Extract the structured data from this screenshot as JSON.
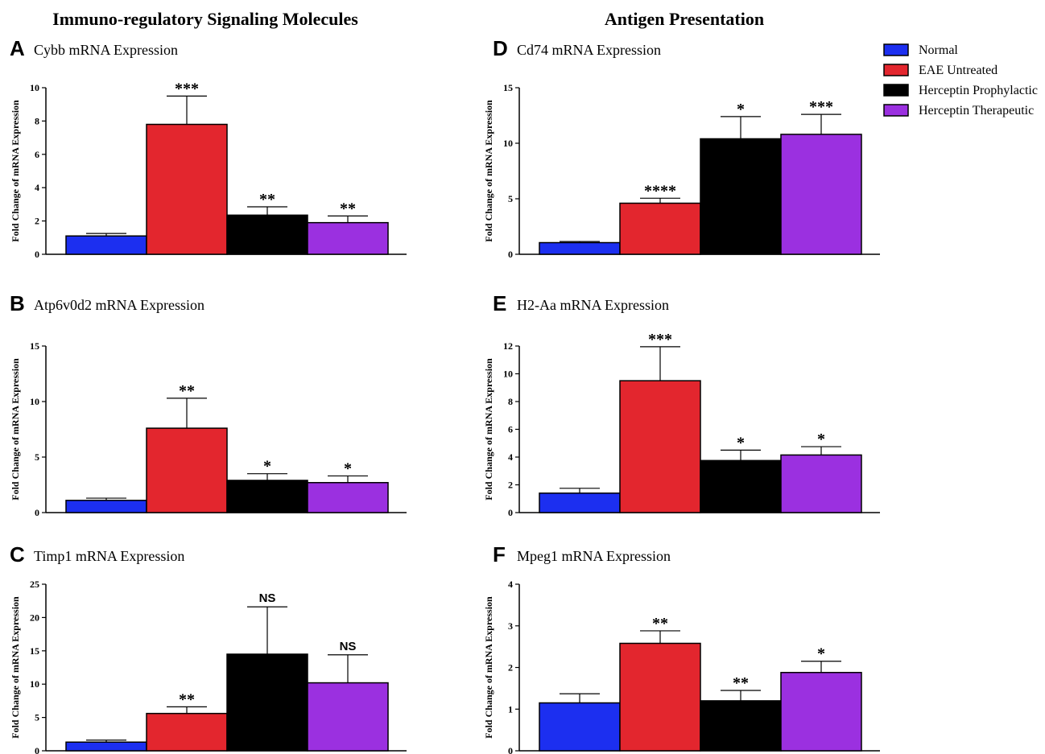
{
  "section_titles": {
    "left": "Immuno-regulatory Signaling Molecules",
    "right": "Antigen Presentation"
  },
  "legend": {
    "items": [
      {
        "label": "Normal",
        "color": "#1c2ff0"
      },
      {
        "label": "EAE Untreated",
        "color": "#e3262e"
      },
      {
        "label": "Herceptin Prophylactic",
        "color": "#000000"
      },
      {
        "label": "Herceptin Therapeutic",
        "color": "#9b30e0"
      }
    ]
  },
  "chart_data": [
    {
      "panel": "A",
      "type": "bar",
      "title": "Cybb mRNA Expression",
      "ylabel": "Fold Change of mRNA Expression",
      "ylim": [
        0,
        10
      ],
      "yticks": [
        "0",
        "2",
        "4",
        "6",
        "8",
        "10"
      ],
      "ytick_values": [
        0,
        2,
        4,
        6,
        8,
        10
      ],
      "series": [
        {
          "name": "Normal",
          "value": 1.1,
          "error": 0.15,
          "sig": ""
        },
        {
          "name": "EAE Untreated",
          "value": 7.8,
          "error": 1.7,
          "sig": "***"
        },
        {
          "name": "Herceptin Prophylactic",
          "value": 2.35,
          "error": 0.5,
          "sig": "**"
        },
        {
          "name": "Herceptin Therapeutic",
          "value": 1.9,
          "error": 0.4,
          "sig": "**"
        }
      ]
    },
    {
      "panel": "B",
      "type": "bar",
      "title": "Atp6v0d2 mRNA Expression",
      "ylabel": "Fold Change of mRNA Expression",
      "ylim": [
        0,
        15
      ],
      "yticks": [
        "0",
        "5",
        "10",
        "15"
      ],
      "ytick_values": [
        0,
        5,
        10,
        15
      ],
      "series": [
        {
          "name": "Normal",
          "value": 1.1,
          "error": 0.2,
          "sig": ""
        },
        {
          "name": "EAE Untreated",
          "value": 7.6,
          "error": 2.7,
          "sig": "**"
        },
        {
          "name": "Herceptin Prophylactic",
          "value": 2.9,
          "error": 0.6,
          "sig": "*"
        },
        {
          "name": "Herceptin Therapeutic",
          "value": 2.7,
          "error": 0.6,
          "sig": "*"
        }
      ]
    },
    {
      "panel": "C",
      "type": "bar",
      "title": "Timp1 mRNA Expression",
      "ylabel": "Fold Change of mRNA Expression",
      "ylim": [
        0,
        25
      ],
      "yticks": [
        "0",
        "5",
        "10",
        "15",
        "20",
        "25"
      ],
      "ytick_values": [
        0,
        5,
        10,
        15,
        20,
        25
      ],
      "series": [
        {
          "name": "Normal",
          "value": 1.3,
          "error": 0.3,
          "sig": ""
        },
        {
          "name": "EAE Untreated",
          "value": 5.6,
          "error": 1.0,
          "sig": "**"
        },
        {
          "name": "Herceptin Prophylactic",
          "value": 14.5,
          "error": 7.1,
          "sig": "NS"
        },
        {
          "name": "Herceptin Therapeutic",
          "value": 10.2,
          "error": 4.2,
          "sig": "NS"
        }
      ]
    },
    {
      "panel": "D",
      "type": "bar",
      "title": "Cd74 mRNA Expression",
      "ylabel": "Fold Change of mRNA Expression",
      "ylim": [
        0,
        15
      ],
      "yticks": [
        "0",
        "5",
        "10",
        "15"
      ],
      "ytick_values": [
        0,
        5,
        10,
        15
      ],
      "series": [
        {
          "name": "Normal",
          "value": 1.05,
          "error": 0.1,
          "sig": ""
        },
        {
          "name": "EAE Untreated",
          "value": 4.6,
          "error": 0.45,
          "sig": "****"
        },
        {
          "name": "Herceptin Prophylactic",
          "value": 10.4,
          "error": 2.0,
          "sig": "*"
        },
        {
          "name": "Herceptin Therapeutic",
          "value": 10.8,
          "error": 1.8,
          "sig": "***"
        }
      ]
    },
    {
      "panel": "E",
      "type": "bar",
      "title": "H2-Aa mRNA Expression",
      "ylabel": "Fold Change of mRNA Expression",
      "ylim": [
        0,
        12
      ],
      "yticks": [
        "0",
        "2",
        "4",
        "6",
        "8",
        "10",
        "12"
      ],
      "ytick_values": [
        0,
        2,
        4,
        6,
        8,
        10,
        12
      ],
      "series": [
        {
          "name": "Normal",
          "value": 1.4,
          "error": 0.35,
          "sig": ""
        },
        {
          "name": "EAE Untreated",
          "value": 9.5,
          "error": 2.45,
          "sig": "***"
        },
        {
          "name": "Herceptin Prophylactic",
          "value": 3.75,
          "error": 0.75,
          "sig": "*"
        },
        {
          "name": "Herceptin Therapeutic",
          "value": 4.15,
          "error": 0.6,
          "sig": "*"
        }
      ]
    },
    {
      "panel": "F",
      "type": "bar",
      "title": "Mpeg1 mRNA Expression",
      "ylabel": "Fold Change of mRNA Expression",
      "ylim": [
        0,
        4
      ],
      "yticks": [
        "0",
        "1",
        "2",
        "3",
        "4"
      ],
      "ytick_values": [
        0,
        1,
        2,
        3,
        4
      ],
      "series": [
        {
          "name": "Normal",
          "value": 1.15,
          "error": 0.22,
          "sig": ""
        },
        {
          "name": "EAE Untreated",
          "value": 2.58,
          "error": 0.3,
          "sig": "**"
        },
        {
          "name": "Herceptin Prophylactic",
          "value": 1.2,
          "error": 0.25,
          "sig": "**"
        },
        {
          "name": "Herceptin Therapeutic",
          "value": 1.88,
          "error": 0.27,
          "sig": "*"
        }
      ]
    }
  ]
}
